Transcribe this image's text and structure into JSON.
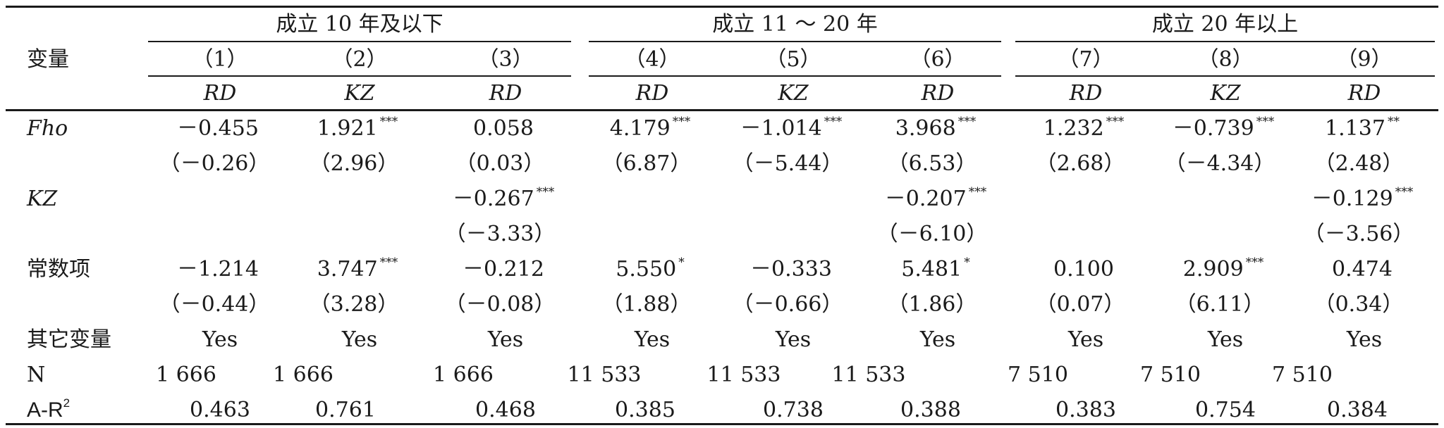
{
  "header": {
    "variable_label": "变量",
    "groups": [
      "成立 10 年及以下",
      "成立 11 ～ 20 年",
      "成立 20 年以上"
    ],
    "columns": [
      "（1）",
      "（2）",
      "（3）",
      "（4）",
      "（5）",
      "（6）",
      "（7）",
      "（8）",
      "（9）"
    ],
    "dependent": [
      "RD",
      "KZ",
      "RD",
      "RD",
      "KZ",
      "RD",
      "RD",
      "KZ",
      "RD"
    ]
  },
  "rows": {
    "fho": {
      "label": "Fho",
      "coef": [
        "－0.455",
        "1.921",
        "0.058",
        "4.179",
        "－1.014",
        "3.968",
        "1.232",
        "－0.739",
        "1.137"
      ],
      "stars": [
        "",
        "***",
        "",
        "***",
        "***",
        "***",
        "***",
        "***",
        "**"
      ],
      "t": [
        "（－0.26）",
        "（2.96）",
        "（0.03）",
        "（6.87）",
        "（－5.44）",
        "（6.53）",
        "（2.68）",
        "（－4.34）",
        "（2.48）"
      ]
    },
    "kz": {
      "label": "KZ",
      "coef": [
        "－0.267",
        "－0.207",
        "－0.129"
      ],
      "stars": [
        "***",
        "***",
        "***"
      ],
      "t": [
        "（－3.33）",
        "（－6.10）",
        "（－3.56）"
      ]
    },
    "const": {
      "label": "常数项",
      "coef": [
        "－1.214",
        "3.747",
        "－0.212",
        "5.550",
        "－0.333",
        "5.481",
        "0.100",
        "2.909",
        "0.474"
      ],
      "stars": [
        "",
        "***",
        "",
        "*",
        "",
        "*",
        "",
        "***",
        ""
      ],
      "t": [
        "（－0.44）",
        "（3.28）",
        "（－0.08）",
        "（1.88）",
        "（－0.66）",
        "（1.86）",
        "（0.07）",
        "（6.11）",
        "（0.34）"
      ]
    },
    "controls": {
      "label": "其它变量",
      "values": [
        "Yes",
        "Yes",
        "Yes",
        "Yes",
        "Yes",
        "Yes",
        "Yes",
        "Yes",
        "Yes"
      ]
    },
    "n": {
      "label": "N",
      "values": [
        "1 666",
        "1 666",
        "1 666",
        "11 533",
        "11 533",
        "11 533",
        "7 510",
        "7 510",
        "7 510"
      ]
    },
    "ar2": {
      "label": "A-R",
      "label_sup": "2",
      "values": [
        "0.463",
        "0.761",
        "0.468",
        "0.385",
        "0.738",
        "0.388",
        "0.383",
        "0.754",
        "0.384"
      ]
    }
  }
}
